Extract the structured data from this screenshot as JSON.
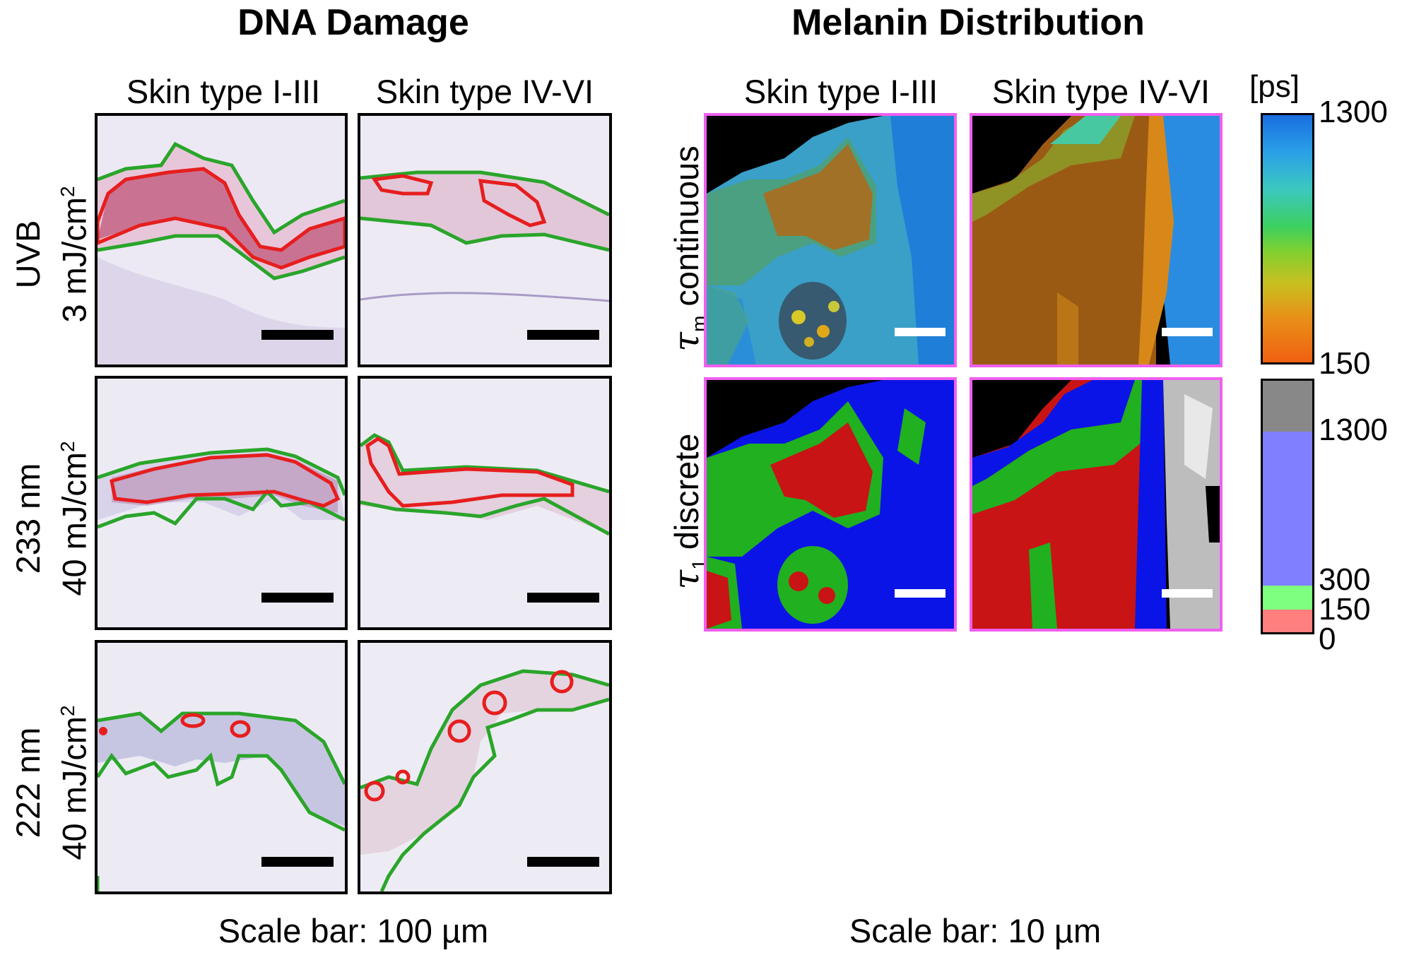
{
  "dna": {
    "title": "DNA Damage",
    "col_headers": [
      "Skin type I-III",
      "Skin type IV-VI"
    ],
    "rows": [
      {
        "line1": "UVB",
        "line2": "3 mJ/cm",
        "sup": "2"
      },
      {
        "line1": "233 nm",
        "line2": "40 mJ/cm",
        "sup": "2"
      },
      {
        "line1": "222 nm",
        "line2": "40 mJ/cm",
        "sup": "2"
      }
    ],
    "caption": "Scale bar: 100 µm",
    "colors": {
      "epidermis_outline": "#2aa52a",
      "damage_outline": "#e61e1e",
      "tissue_stain": "#cfc8e6",
      "damage_fill": "#c0567a"
    }
  },
  "melanin": {
    "title": "Melanin Distribution",
    "col_headers": [
      "Skin type I-III",
      "Skin type IV-VI"
    ],
    "rows": [
      {
        "symbol": "τ",
        "subscript": "m",
        "label": "continuous"
      },
      {
        "symbol": "τ",
        "subscript": "1",
        "label": "discrete"
      }
    ],
    "caption": "Scale bar: 10 µm",
    "colorbar_unit": "[ps]",
    "continuous_ticks": [
      "1300",
      "150"
    ],
    "discrete_ticks": [
      "1300",
      "300",
      "150",
      "0"
    ],
    "discrete_classes": [
      {
        "color": "#888888",
        "range": "> 1300"
      },
      {
        "color": "#7f7fff",
        "range": "300–1300"
      },
      {
        "color": "#7fff7f",
        "range": "150–300"
      },
      {
        "color": "#ff7f7f",
        "range": "0–150"
      }
    ],
    "colors": {
      "panel_border": "#f05ff0"
    }
  }
}
